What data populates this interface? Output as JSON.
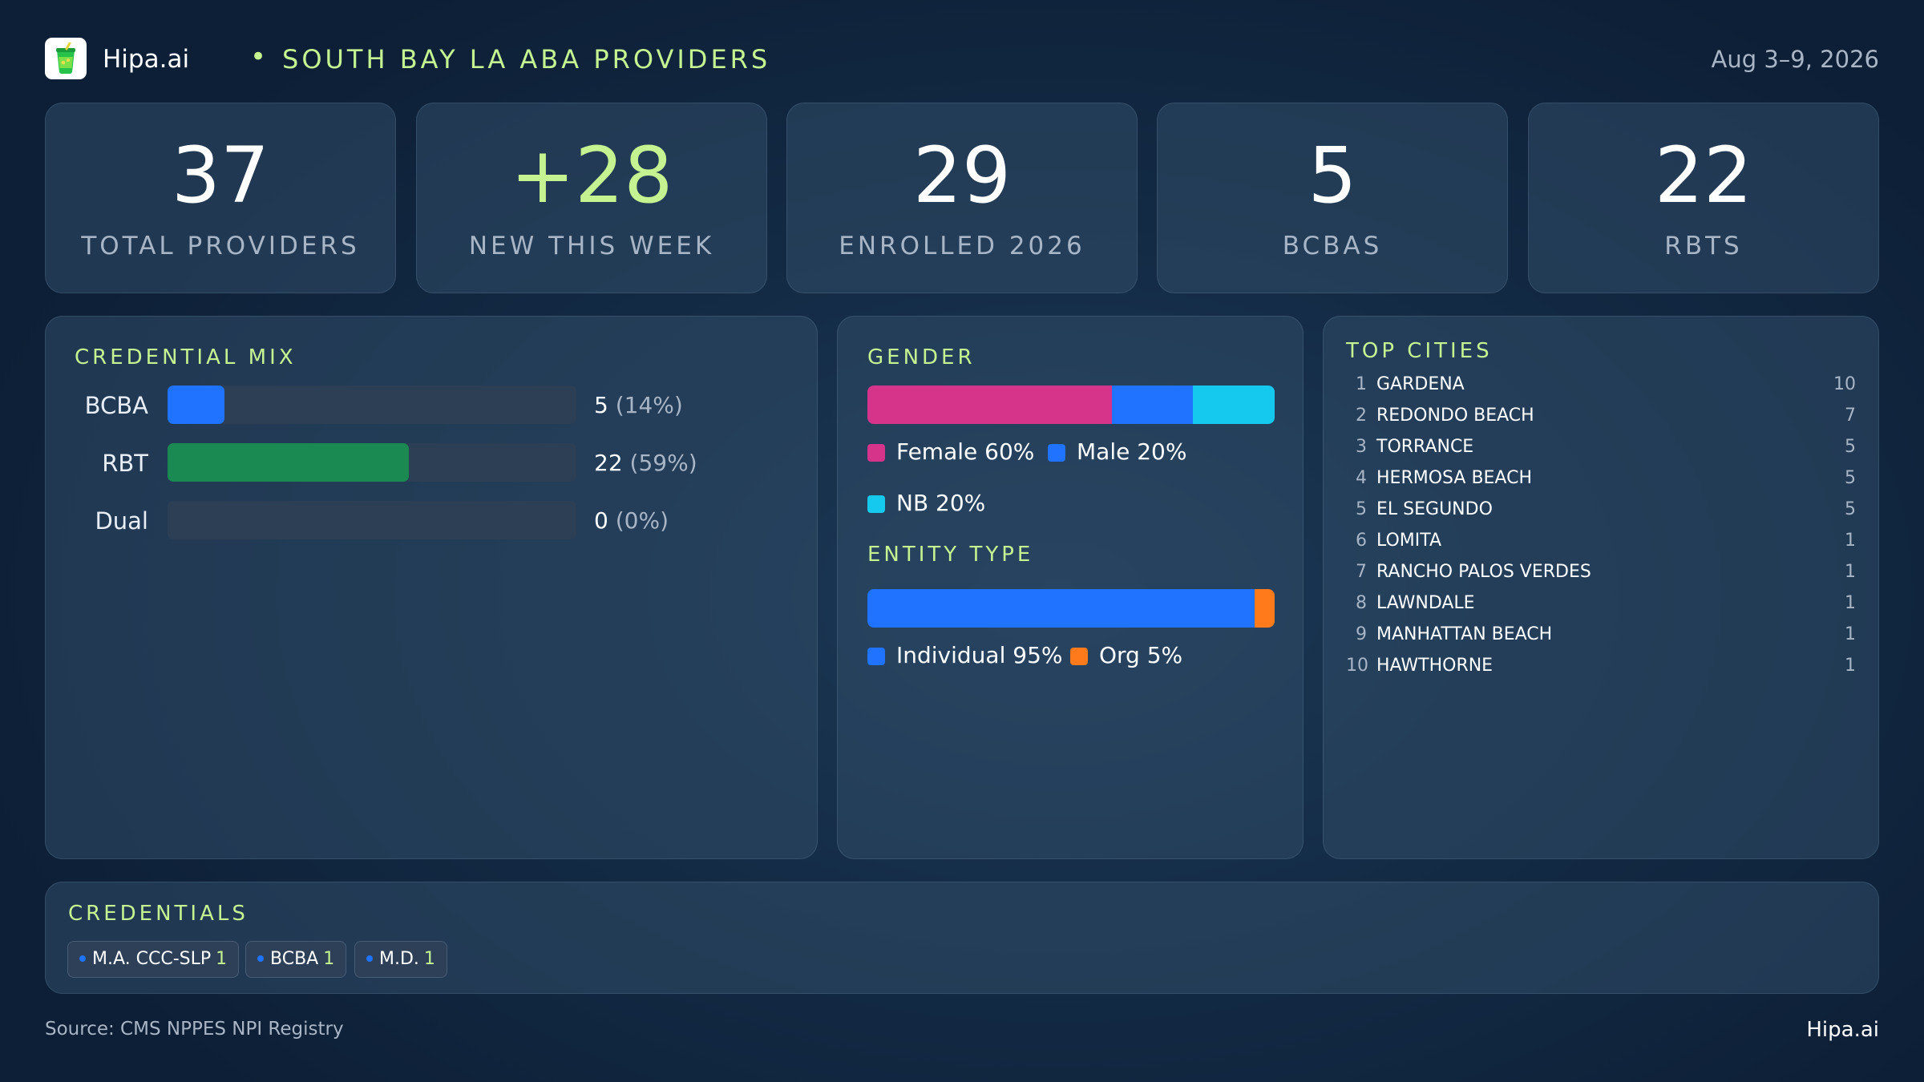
{
  "header": {
    "brand": "Hipa.ai",
    "separator": "•",
    "title": "SOUTH BAY LA ABA PROVIDERS",
    "date_range": "Aug 3–9, 2026",
    "logo_icon": "juice-cup-icon"
  },
  "kpis": [
    {
      "value": "37",
      "label": "TOTAL PROVIDERS"
    },
    {
      "value": "+28",
      "label": "NEW THIS WEEK"
    },
    {
      "value": "29",
      "label": "ENROLLED 2026"
    },
    {
      "value": "5",
      "label": "BCBAS"
    },
    {
      "value": "22",
      "label": "RBTS"
    }
  ],
  "credential_mix": {
    "title": "CREDENTIAL MIX",
    "rows": [
      {
        "label": "BCBA",
        "count": "5",
        "pct": "(14%)",
        "fraction": 0.14,
        "color": "#1f73ff"
      },
      {
        "label": "RBT",
        "count": "22",
        "pct": "(59%)",
        "fraction": 0.59,
        "color": "#1b8a52"
      },
      {
        "label": "Dual",
        "count": "0",
        "pct": "(0%)",
        "fraction": 0.0,
        "color": "#2c3f55"
      }
    ]
  },
  "gender": {
    "title": "GENDER",
    "segments": [
      {
        "label": "Female 60%",
        "fraction": 0.6,
        "color": "#d6348a"
      },
      {
        "label": "Male 20%",
        "fraction": 0.2,
        "color": "#1f73ff"
      },
      {
        "label": "NB 20%",
        "fraction": 0.2,
        "color": "#14c8ee"
      }
    ]
  },
  "entity_type": {
    "title": "ENTITY TYPE",
    "segments": [
      {
        "label": "Individual 95%",
        "fraction": 0.95,
        "color": "#1f73ff"
      },
      {
        "label": "Org 5%",
        "fraction": 0.05,
        "color": "#ff7a1a"
      }
    ]
  },
  "top_cities": {
    "title": "TOP CITIES",
    "items": [
      {
        "rank": "1",
        "name": "GARDENA",
        "count": "10"
      },
      {
        "rank": "2",
        "name": "REDONDO BEACH",
        "count": "7"
      },
      {
        "rank": "3",
        "name": "TORRANCE",
        "count": "5"
      },
      {
        "rank": "4",
        "name": "HERMOSA BEACH",
        "count": "5"
      },
      {
        "rank": "5",
        "name": "EL SEGUNDO",
        "count": "5"
      },
      {
        "rank": "6",
        "name": "LOMITA",
        "count": "1"
      },
      {
        "rank": "7",
        "name": "RANCHO PALOS VERDES",
        "count": "1"
      },
      {
        "rank": "8",
        "name": "LAWNDALE",
        "count": "1"
      },
      {
        "rank": "9",
        "name": "MANHATTAN BEACH",
        "count": "1"
      },
      {
        "rank": "10",
        "name": "HAWTHORNE",
        "count": "1"
      }
    ]
  },
  "credentials": {
    "title": "CREDENTIALS",
    "chips": [
      {
        "label": "M.A. CCC-SLP",
        "count": "1"
      },
      {
        "label": "BCBA",
        "count": "1"
      },
      {
        "label": "M.D.",
        "count": "1"
      }
    ]
  },
  "footer": {
    "source": "Source: CMS NPPES NPI Registry",
    "brand": "Hipa.ai"
  },
  "colors": {
    "accent": "#c6f391",
    "muted": "#a7b5c6",
    "blue": "#1f73ff",
    "green": "#1b8a52",
    "pink": "#d6348a",
    "cyan": "#14c8ee",
    "orange": "#ff7a1a"
  }
}
